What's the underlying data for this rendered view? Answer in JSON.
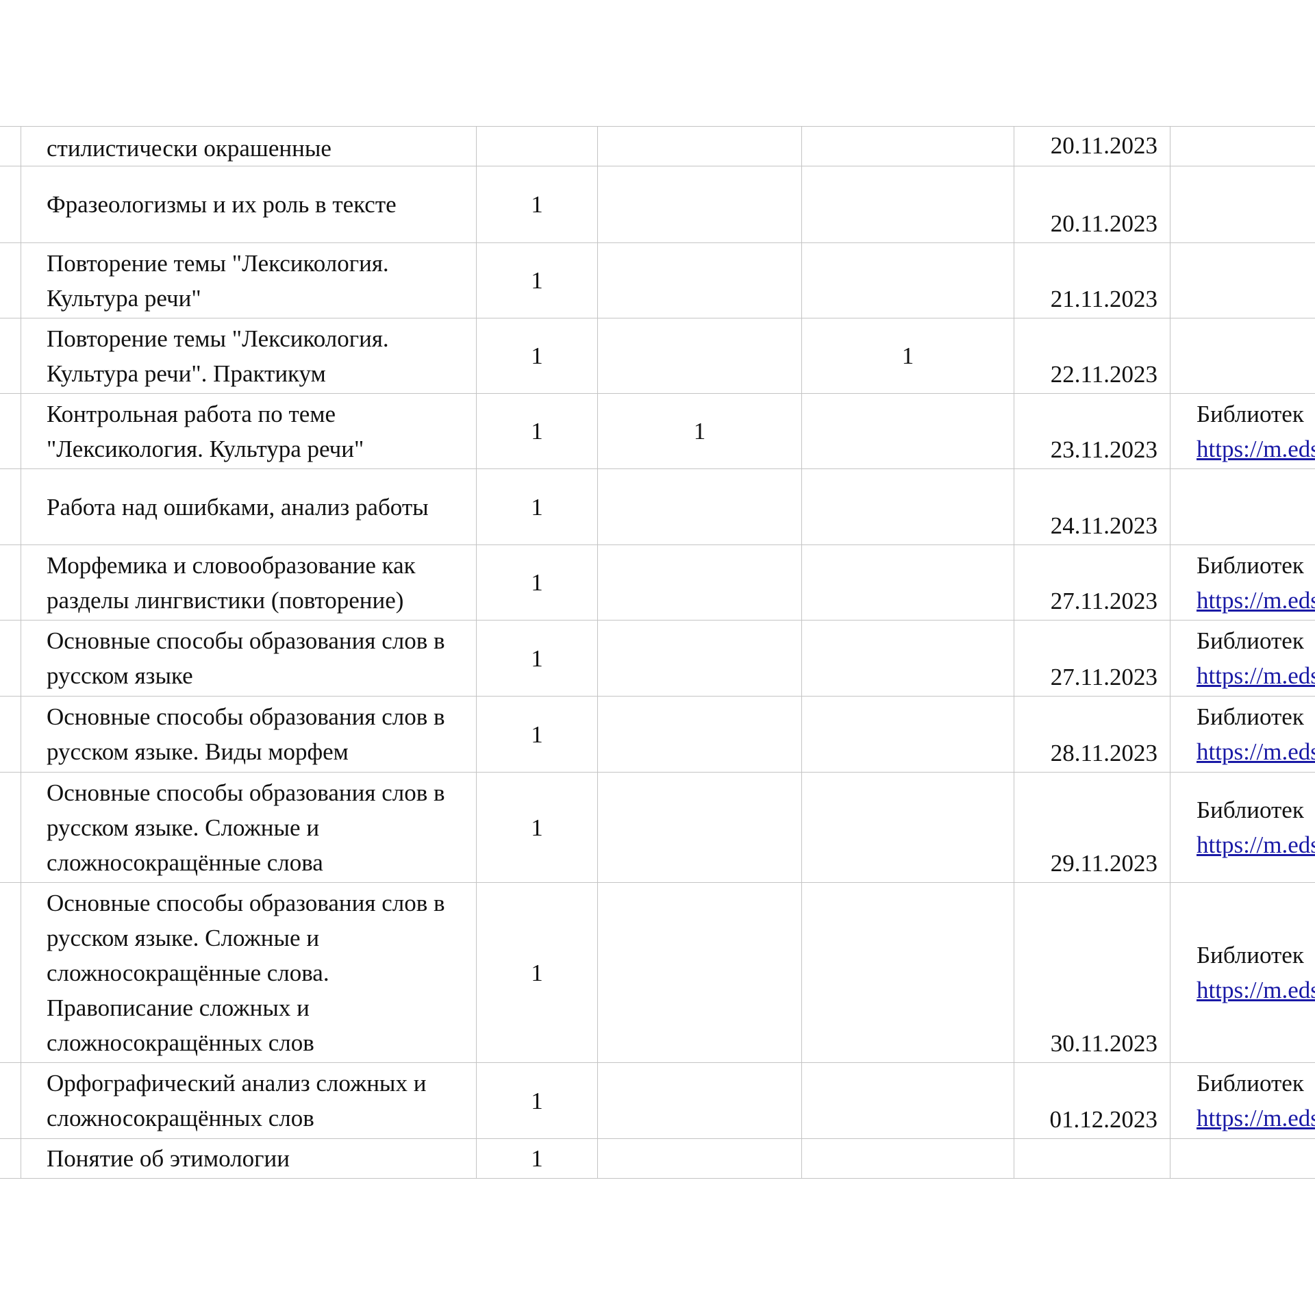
{
  "rows": [
    {
      "topic": "стилистически окрашенные",
      "hours": "",
      "control": "",
      "practice": "",
      "date": "20.11.2023",
      "resource": "",
      "link": ""
    },
    {
      "topic": "Фразеологизмы и их роль в тексте",
      "hours": "1",
      "control": "",
      "practice": "",
      "date": "20.11.2023",
      "resource": "",
      "link": ""
    },
    {
      "topic": "Повторение темы \"Лексикология. Культура речи\"",
      "hours": "1",
      "control": "",
      "practice": "",
      "date": "21.11.2023",
      "resource": "",
      "link": ""
    },
    {
      "topic": "Повторение темы \"Лексикология. Культура речи\". Практикум",
      "hours": "1",
      "control": "",
      "practice": "1",
      "date": "22.11.2023",
      "resource": "",
      "link": ""
    },
    {
      "topic": "Контрольная работа по теме \"Лексикология. Культура речи\"",
      "hours": "1",
      "control": "1",
      "practice": "",
      "date": "23.11.2023",
      "resource": "Библиотек",
      "link": "https://m.eds"
    },
    {
      "topic": "Работа над ошибками, анализ работы",
      "hours": "1",
      "control": "",
      "practice": "",
      "date": "24.11.2023",
      "resource": "",
      "link": ""
    },
    {
      "topic": "Морфемика и словообразование как разделы лингвистики (повторение)",
      "hours": "1",
      "control": "",
      "practice": "",
      "date": "27.11.2023",
      "resource": "Библиотек",
      "link": "https://m.eds"
    },
    {
      "topic": "Основные способы образования слов в русском языке",
      "hours": "1",
      "control": "",
      "practice": "",
      "date": "27.11.2023",
      "resource": "Библиотек",
      "link": "https://m.eds"
    },
    {
      "topic": "Основные способы образования слов в русском языке. Виды морфем",
      "hours": "1",
      "control": "",
      "practice": "",
      "date": "28.11.2023",
      "resource": "Библиотек",
      "link": "https://m.eds"
    },
    {
      "topic": "Основные способы образования слов в русском языке. Сложные и сложносокращённые слова",
      "hours": "1",
      "control": "",
      "practice": "",
      "date": "29.11.2023",
      "resource": "Библиотек",
      "link": "https://m.eds"
    },
    {
      "topic": "Основные способы образования слов в русском языке. Сложные и сложносокращённые слова. Правописание сложных и сложносокращённых слов",
      "hours": "1",
      "control": "",
      "practice": "",
      "date": "30.11.2023",
      "resource": "Библиотек",
      "link": "https://m.eds"
    },
    {
      "topic": "Орфографический анализ сложных и сложносокращённых слов",
      "hours": "1",
      "control": "",
      "practice": "",
      "date": "01.12.2023",
      "resource": "Библиотек",
      "link": "https://m.eds"
    },
    {
      "topic": "Понятие об этимологии",
      "hours": "1",
      "control": "",
      "practice": "",
      "date": "",
      "resource": "",
      "link": ""
    }
  ],
  "colors": {
    "link": "#1a1aa6",
    "grid": "#c4c4c4"
  }
}
